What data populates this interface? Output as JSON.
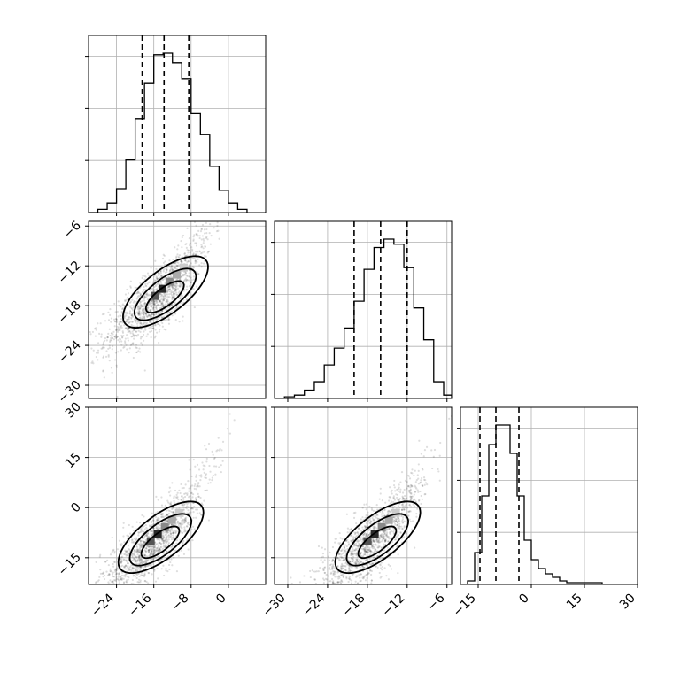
{
  "chart_data": {
    "type": "corner",
    "parameters": 3,
    "panels": [
      {
        "kind": "histogram",
        "row": 0,
        "col": 0,
        "xlim": [
          -30,
          8
        ],
        "bins": [
          -30,
          -28,
          -26,
          -24,
          -22,
          -20,
          -18,
          -16,
          -14,
          -12,
          -10,
          -8,
          -6,
          -4,
          -2,
          0,
          2,
          4
        ],
        "counts": [
          0.0,
          0.02,
          0.06,
          0.15,
          0.33,
          0.59,
          0.81,
          0.99,
          1.0,
          0.94,
          0.84,
          0.62,
          0.49,
          0.29,
          0.14,
          0.06,
          0.02
        ],
        "quantiles": [
          -18.5,
          -13.8,
          -8.5
        ],
        "x_ticks": [
          -24,
          -16,
          -8,
          0
        ]
      },
      {
        "kind": "histogram",
        "row": 1,
        "col": 1,
        "xlim": [
          -32,
          -5.3
        ],
        "bins": [
          -32,
          -30.5,
          -29,
          -27.5,
          -26,
          -24.5,
          -23,
          -21.5,
          -20,
          -18.5,
          -17,
          -15.5,
          -14,
          -12.5,
          -11,
          -9.5,
          -8,
          -6.5,
          -5.3
        ],
        "counts": [
          0.0,
          0.01,
          0.02,
          0.05,
          0.1,
          0.2,
          0.3,
          0.42,
          0.58,
          0.77,
          0.9,
          0.95,
          0.92,
          0.78,
          0.54,
          0.35,
          0.1,
          0.02
        ],
        "quantiles": [
          -20.0,
          -16.0,
          -12.0
        ],
        "x_ticks": [
          -30,
          -24,
          -18,
          -12,
          -6
        ],
        "x_tick_labels": [
          "−30",
          "−24",
          "−18",
          "−12",
          "−6"
        ]
      },
      {
        "kind": "histogram",
        "row": 2,
        "col": 2,
        "xlim": [
          -20,
          30
        ],
        "bins": [
          -20,
          -18,
          -16,
          -14,
          -12,
          -10,
          -8,
          -6,
          -4,
          -2,
          0,
          2,
          4,
          6,
          8,
          10,
          12,
          14,
          16,
          20,
          30
        ],
        "counts": [
          0.0,
          0.02,
          0.18,
          0.5,
          0.79,
          0.9,
          0.9,
          0.74,
          0.5,
          0.25,
          0.14,
          0.09,
          0.06,
          0.04,
          0.02,
          0.01,
          0.01,
          0.01,
          0.01,
          0.0
        ],
        "quantiles": [
          -14.5,
          -10.0,
          -3.5
        ],
        "x_ticks": [
          -15,
          0,
          15,
          30
        ],
        "x_tick_labels": [
          "−15",
          "0",
          "15",
          "30"
        ]
      },
      {
        "kind": "density2d",
        "row": 1,
        "col": 0,
        "xlim": [
          -30,
          8
        ],
        "ylim": [
          -32,
          -5.3
        ],
        "center": [
          -15,
          -17
        ],
        "x_ticks": [
          -24,
          -16,
          -8,
          0
        ],
        "x_tick_labels": [
          "−24",
          "−16",
          "−8",
          "0"
        ],
        "y_ticks": [
          -6,
          -12,
          -18,
          -24,
          -30
        ],
        "y_tick_labels": [
          "−6",
          "−12",
          "−18",
          "−24",
          "−30"
        ]
      },
      {
        "kind": "density2d",
        "row": 2,
        "col": 0,
        "xlim": [
          -30,
          8
        ],
        "ylim": [
          -23,
          30
        ],
        "center": [
          -16,
          -11
        ],
        "x_ticks": [
          -24,
          -16,
          -8,
          0
        ],
        "x_tick_labels": [
          "−24",
          "−16",
          "−8",
          "0"
        ],
        "y_ticks": [
          30,
          15,
          0,
          -15
        ],
        "y_tick_labels": [
          "30",
          "15",
          "0",
          "−15"
        ]
      },
      {
        "kind": "density2d",
        "row": 2,
        "col": 1,
        "xlim": [
          -32,
          -5.3
        ],
        "ylim": [
          -23,
          30
        ],
        "center": [
          -17.5,
          -11
        ],
        "x_ticks": [
          -30,
          -24,
          -18,
          -12,
          -6
        ],
        "x_tick_labels": [
          "−30",
          "−24",
          "−18",
          "−12",
          "−6"
        ],
        "y_ticks": [
          30,
          15,
          0,
          -15
        ]
      }
    ],
    "grid": true,
    "colors": {
      "line": "#000000",
      "grid": "#b0b0b0",
      "scatter": "#000000"
    }
  }
}
